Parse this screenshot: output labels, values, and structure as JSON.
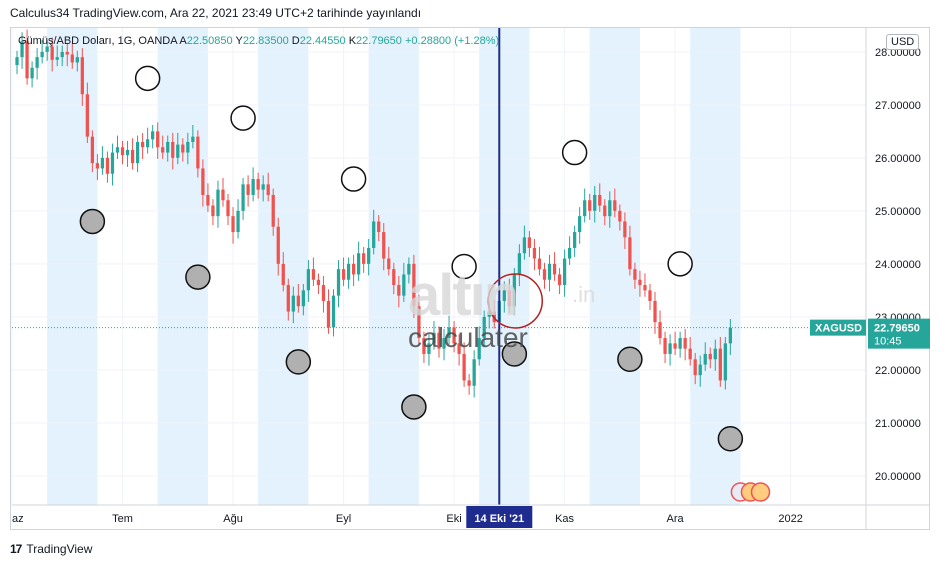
{
  "header": {
    "publish_text": "Calculus34 TradingView.com, Ara 22, 2021 23:49 UTC+2 tarihinde yayınlandı"
  },
  "legend": {
    "prefix": "Gümüş/ABD Doları, 1G, OANDA",
    "o_label": "A",
    "o_value": "22.50850",
    "h_label": "Y",
    "h_value": "22.83500",
    "l_label": "D",
    "l_value": "22.44550",
    "c_label": "K",
    "c_value": "22.79650",
    "change": "+0.28800 (+1.28%)"
  },
  "currency_badge": "USD",
  "price_tag": {
    "symbol": "XAGUSD",
    "price": "22.79650",
    "countdown": "10:45"
  },
  "crosshair_date": "14 Eki '21",
  "watermark": {
    "main": "altın",
    "tld": ".in",
    "sub": "calculater"
  },
  "footer": {
    "brand": "TradingView",
    "logo_glyph": "17"
  },
  "colors": {
    "up": "#26a69a",
    "down": "#ef5350",
    "band": "#e3f2fd",
    "crosshair": "#1e2b8f",
    "tag_bg": "#26a69a"
  },
  "chart_data": {
    "type": "candlestick",
    "symbol": "XAGUSD",
    "y_ticks": [
      20,
      21,
      22,
      23,
      24,
      25,
      26,
      27,
      28
    ],
    "y_tick_labels": [
      "20.00000",
      "21.00000",
      "22.00000",
      "23.00000",
      "24.00000",
      "25.00000",
      "26.00000",
      "27.00000",
      "28.00000"
    ],
    "ylim": [
      19.45,
      28.45
    ],
    "x_ticks": [
      {
        "label": "az",
        "t": 0
      },
      {
        "label": "Tem",
        "t": 22
      },
      {
        "label": "Ağu",
        "t": 44
      },
      {
        "label": "Eyl",
        "t": 66
      },
      {
        "label": "Eki",
        "t": 88
      },
      {
        "label": "Kas",
        "t": 110
      },
      {
        "label": "Ara",
        "t": 132
      },
      {
        "label": "2022",
        "t": 155
      }
    ],
    "xlim": [
      0,
      170
    ],
    "bands": [
      [
        7,
        17
      ],
      [
        29,
        39
      ],
      [
        49,
        59
      ],
      [
        71,
        81
      ],
      [
        93,
        103
      ],
      [
        115,
        125
      ],
      [
        135,
        145
      ]
    ],
    "crosshair_t": 97,
    "last_price": 22.7965,
    "closes": [
      27.9,
      28.2,
      27.5,
      27.7,
      27.9,
      28.0,
      28.1,
      27.85,
      27.9,
      28.0,
      27.95,
      27.8,
      27.9,
      27.2,
      26.4,
      25.9,
      25.8,
      26.0,
      25.7,
      26.1,
      26.2,
      26.05,
      26.15,
      25.9,
      26.3,
      26.2,
      26.35,
      26.5,
      26.2,
      26.1,
      26.3,
      26.0,
      26.25,
      26.1,
      26.3,
      26.4,
      25.8,
      25.3,
      25.1,
      24.9,
      25.4,
      25.2,
      24.9,
      24.6,
      25.0,
      25.5,
      25.3,
      25.6,
      25.4,
      25.5,
      25.3,
      24.7,
      24.0,
      23.6,
      23.1,
      23.4,
      23.2,
      23.5,
      23.9,
      23.7,
      23.6,
      23.3,
      22.8,
      23.4,
      23.9,
      23.7,
      24.0,
      23.8,
      24.2,
      24.0,
      24.3,
      24.8,
      24.6,
      24.1,
      23.9,
      23.6,
      23.4,
      23.8,
      24.0,
      23.2,
      22.6,
      22.3,
      22.5,
      22.7,
      22.4,
      22.6,
      22.8,
      22.5,
      22.3,
      21.8,
      21.7,
      22.2,
      22.6,
      23.0,
      23.1,
      22.9,
      23.3,
      23.5,
      23.2,
      23.8,
      24.2,
      24.5,
      24.3,
      24.1,
      23.9,
      23.7,
      24.0,
      23.8,
      23.6,
      24.1,
      24.3,
      24.6,
      24.9,
      25.2,
      25.0,
      25.3,
      25.1,
      24.9,
      25.2,
      25.0,
      24.8,
      24.5,
      23.9,
      23.7,
      23.6,
      23.5,
      23.3,
      22.9,
      22.6,
      22.3,
      22.5,
      22.4,
      22.6,
      22.4,
      22.2,
      21.9,
      22.1,
      22.3,
      22.2,
      22.4,
      21.8,
      22.5,
      22.79
    ],
    "annotation_circles": [
      {
        "t": 27,
        "price": 27.5,
        "fill": "white"
      },
      {
        "t": 16,
        "price": 24.8,
        "fill": "gray"
      },
      {
        "t": 37,
        "price": 23.75,
        "fill": "gray"
      },
      {
        "t": 46,
        "price": 26.75,
        "fill": "white"
      },
      {
        "t": 57,
        "price": 22.15,
        "fill": "gray"
      },
      {
        "t": 68,
        "price": 25.6,
        "fill": "white"
      },
      {
        "t": 80,
        "price": 21.3,
        "fill": "gray"
      },
      {
        "t": 90,
        "price": 23.95,
        "fill": "white"
      },
      {
        "t": 100,
        "price": 22.3,
        "fill": "gray"
      },
      {
        "t": 112,
        "price": 26.1,
        "fill": "white"
      },
      {
        "t": 123,
        "price": 22.2,
        "fill": "gray"
      },
      {
        "t": 133,
        "price": 24.0,
        "fill": "white"
      },
      {
        "t": 143,
        "price": 20.7,
        "fill": "gray"
      }
    ],
    "event_flags_t": [
      145,
      147,
      149
    ]
  }
}
